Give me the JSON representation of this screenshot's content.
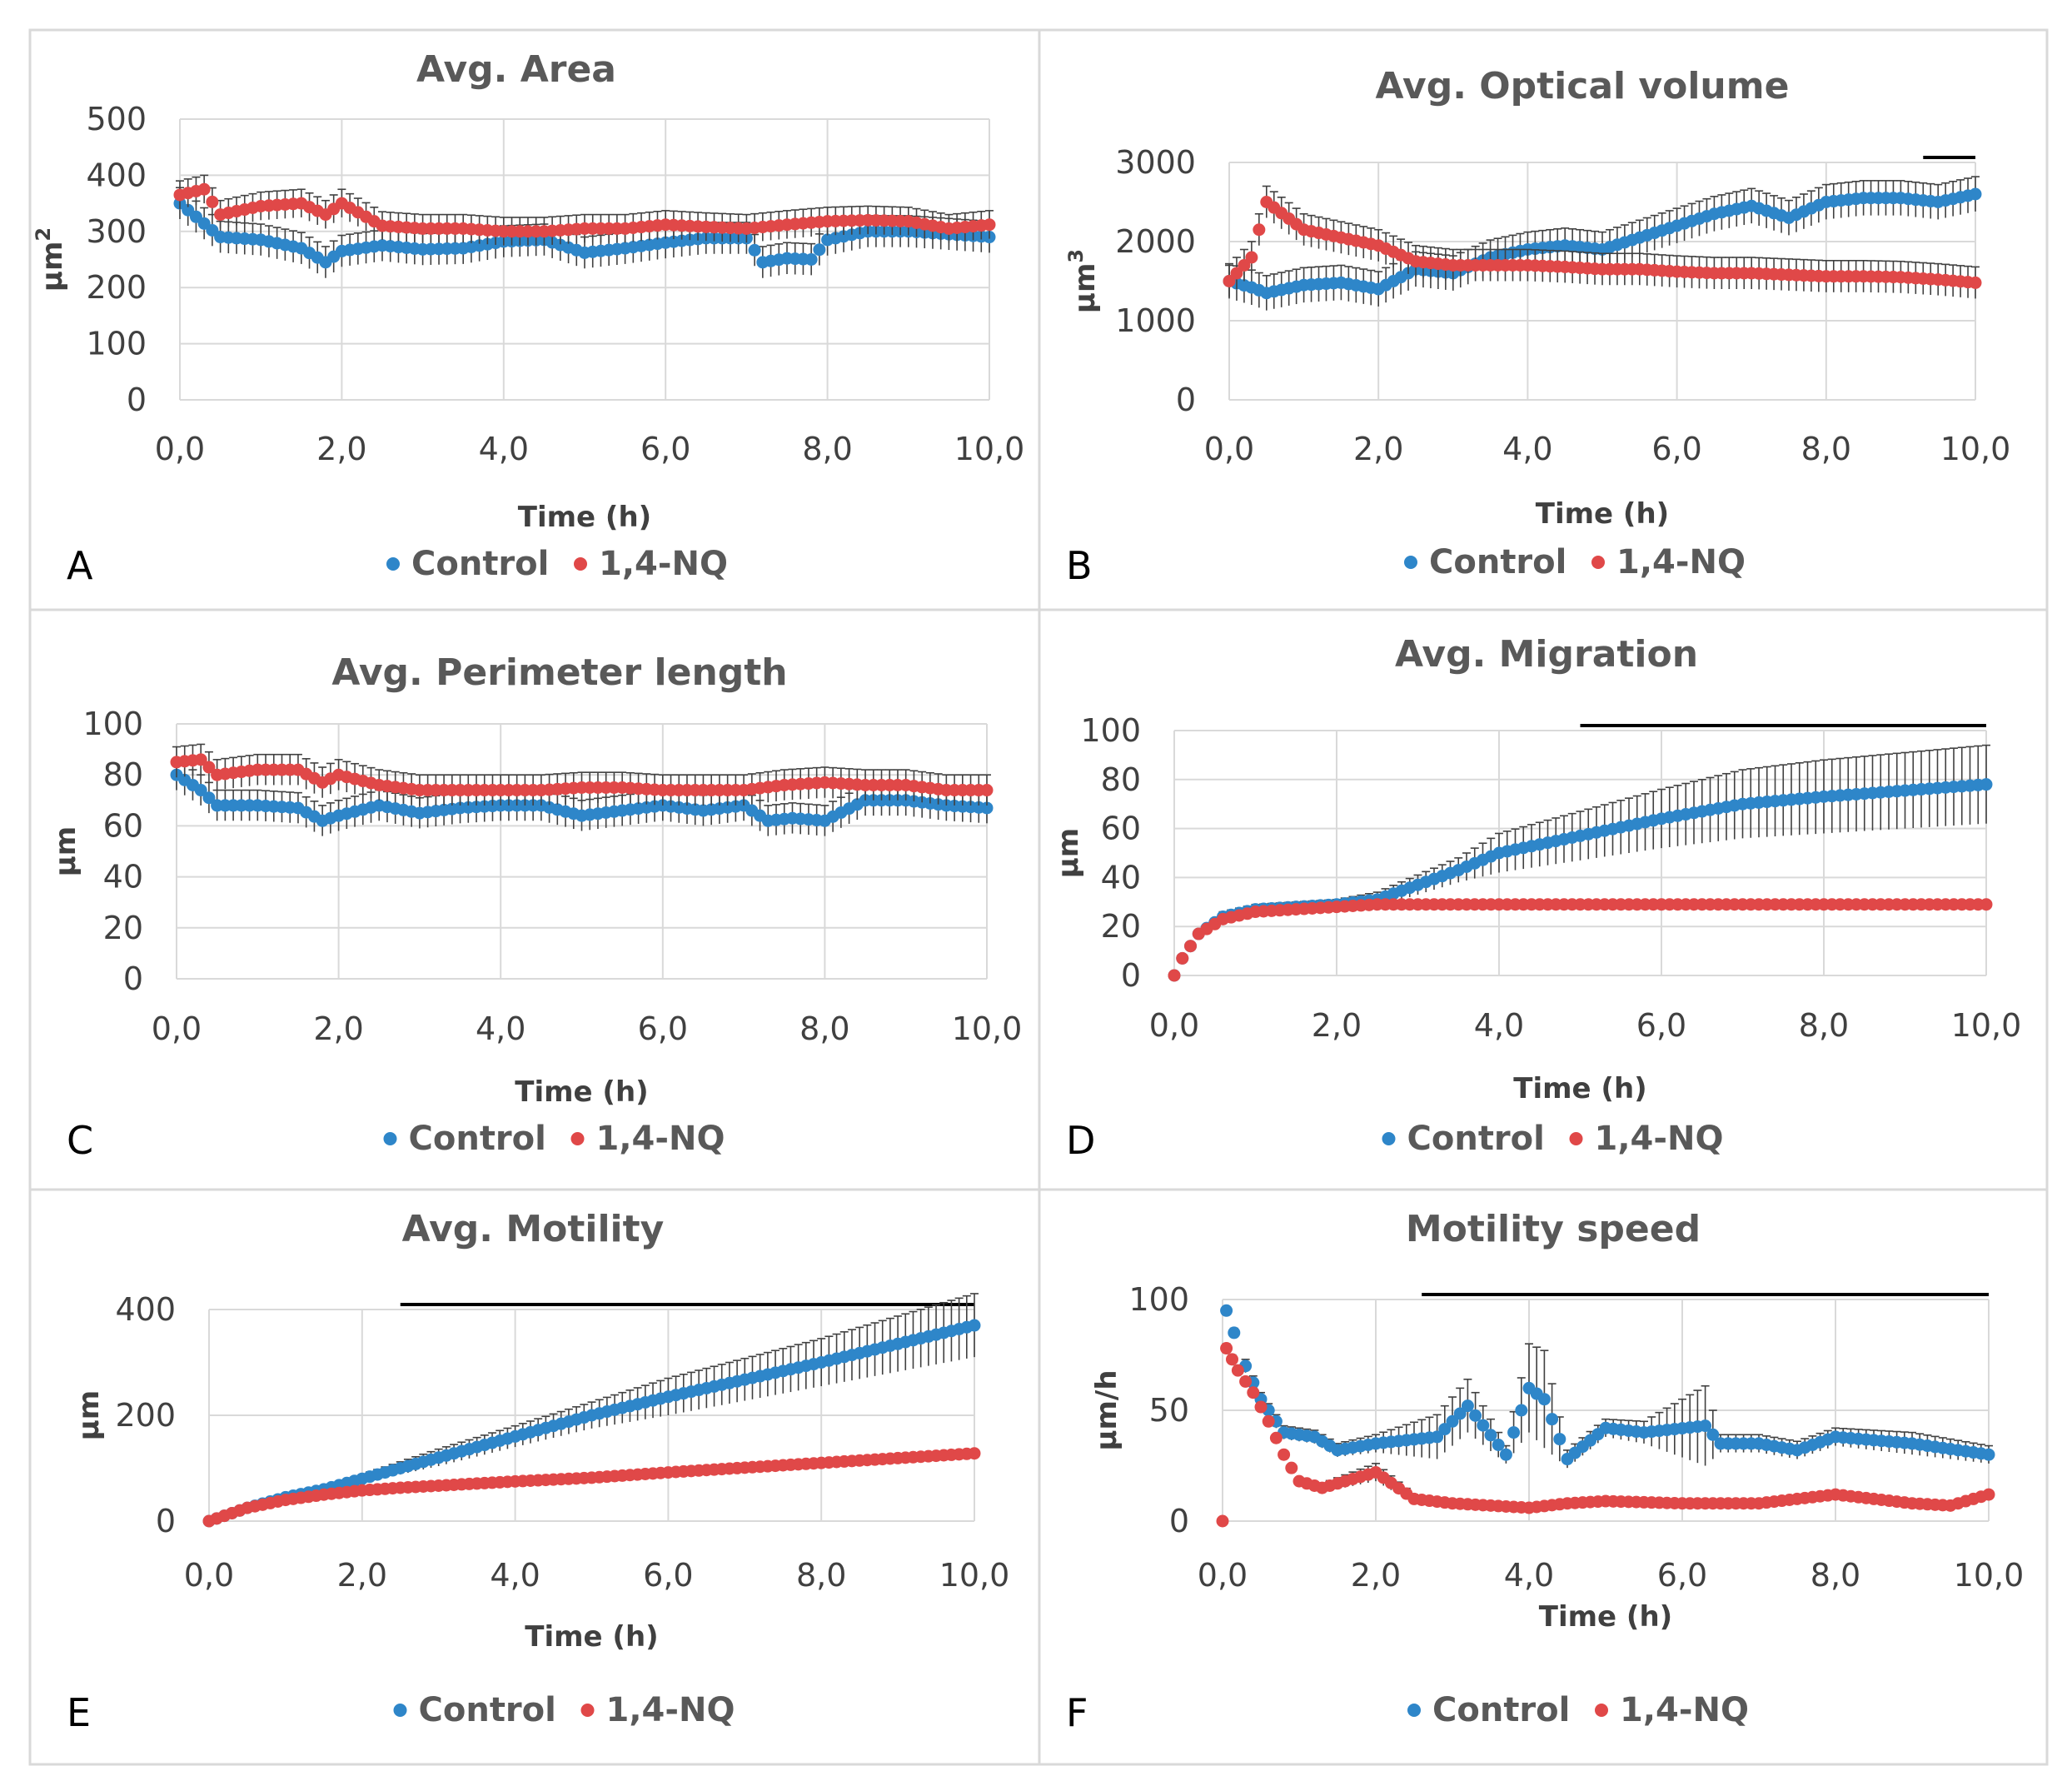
{
  "legend": {
    "control_label": "Control",
    "nq_label": "1,4-NQ"
  },
  "colors": {
    "control": "#2e86c9",
    "nq": "#e04848",
    "error_bar": "#404040",
    "sig_bar": "#000000"
  },
  "chart_data": [
    {
      "panel": "A",
      "type": "scatter",
      "title": "Avg. Area",
      "xlabel": "Time (h)",
      "ylabel": "µm",
      "ylabel_sup": "2",
      "xlim": [
        0,
        10
      ],
      "ylim": [
        0,
        500
      ],
      "xticks": [
        "0,0",
        "2,0",
        "4,0",
        "6,0",
        "8,0",
        "10,0"
      ],
      "yticks": [
        "0",
        "100",
        "200",
        "300",
        "400",
        "500"
      ],
      "significance_bar": null,
      "series": [
        {
          "name": "Control",
          "error": 28,
          "x": [
            0,
            0.5,
            1,
            1.5,
            1.8,
            2,
            2.5,
            3,
            3.5,
            4,
            4.5,
            5,
            5.5,
            6,
            6.5,
            7,
            7.2,
            7.5,
            7.8,
            8,
            8.5,
            9,
            9.5,
            10
          ],
          "y": [
            350,
            290,
            285,
            270,
            245,
            265,
            275,
            268,
            270,
            282,
            285,
            262,
            270,
            280,
            288,
            288,
            245,
            252,
            250,
            285,
            300,
            300,
            295,
            290
          ]
        },
        {
          "name": "1,4-NQ",
          "error": 25,
          "x": [
            0,
            0.3,
            0.5,
            1,
            1.5,
            1.8,
            2,
            2.5,
            3,
            3.5,
            4,
            4.5,
            5,
            5.5,
            6,
            6.5,
            7,
            7.5,
            8,
            8.5,
            9,
            9.5,
            10
          ],
          "y": [
            365,
            375,
            330,
            345,
            350,
            330,
            350,
            310,
            305,
            305,
            300,
            300,
            305,
            305,
            312,
            308,
            305,
            312,
            318,
            320,
            318,
            305,
            312
          ]
        }
      ]
    },
    {
      "panel": "B",
      "type": "scatter",
      "title": "Avg. Optical volume",
      "xlabel": "Time (h)",
      "ylabel": "µm",
      "ylabel_sup": "3",
      "xlim": [
        0,
        10
      ],
      "ylim": [
        0,
        3000
      ],
      "xticks": [
        "0,0",
        "2,0",
        "4,0",
        "6,0",
        "8,0",
        "10,0"
      ],
      "yticks": [
        "0",
        "1000",
        "2000",
        "3000"
      ],
      "significance_bar": [
        9.3,
        10
      ],
      "series": [
        {
          "name": "Control",
          "error": 220,
          "x": [
            0,
            0.3,
            0.5,
            1,
            1.5,
            2,
            2.5,
            3,
            3.5,
            4,
            4.5,
            5,
            5.5,
            6,
            6.5,
            7,
            7.5,
            8,
            8.5,
            9,
            9.5,
            10
          ],
          "y": [
            1500,
            1420,
            1350,
            1450,
            1480,
            1400,
            1650,
            1600,
            1800,
            1900,
            1950,
            1900,
            2050,
            2200,
            2350,
            2450,
            2300,
            2500,
            2550,
            2550,
            2500,
            2600
          ]
        },
        {
          "name": "1,4-NQ",
          "error": 200,
          "x": [
            0,
            0.3,
            0.5,
            1,
            1.5,
            2,
            2.5,
            3,
            3.5,
            4,
            4.5,
            5,
            5.5,
            6,
            6.5,
            7,
            7.5,
            8,
            8.5,
            9,
            9.5,
            10
          ],
          "y": [
            1500,
            1800,
            2500,
            2150,
            2050,
            1950,
            1750,
            1700,
            1700,
            1700,
            1680,
            1650,
            1650,
            1620,
            1600,
            1600,
            1580,
            1560,
            1560,
            1550,
            1520,
            1480
          ]
        }
      ]
    },
    {
      "panel": "C",
      "type": "scatter",
      "title": "Avg. Perimeter length",
      "xlabel": "Time (h)",
      "ylabel": "µm",
      "ylabel_sup": "",
      "xlim": [
        0,
        10
      ],
      "ylim": [
        0,
        100
      ],
      "xticks": [
        "0,0",
        "2,0",
        "4,0",
        "6,0",
        "8,0",
        "10,0"
      ],
      "yticks": [
        "0",
        "20",
        "40",
        "60",
        "80",
        "100"
      ],
      "significance_bar": null,
      "series": [
        {
          "name": "Control",
          "error": 6,
          "x": [
            0,
            0.3,
            0.5,
            1,
            1.5,
            1.8,
            2,
            2.5,
            3,
            3.5,
            4,
            4.5,
            5,
            5.5,
            6,
            6.5,
            7,
            7.3,
            7.6,
            8,
            8.5,
            9,
            9.5,
            10
          ],
          "y": [
            80,
            74,
            68,
            68,
            67,
            62,
            64,
            68,
            65,
            67,
            68,
            68,
            64,
            66,
            68,
            66,
            68,
            62,
            63,
            62,
            70,
            70,
            68,
            67
          ]
        },
        {
          "name": "1,4-NQ",
          "error": 6,
          "x": [
            0,
            0.3,
            0.5,
            1,
            1.5,
            1.8,
            2,
            2.5,
            3,
            3.5,
            4,
            4.5,
            5,
            5.5,
            6,
            6.5,
            7,
            7.5,
            8,
            8.5,
            9,
            9.5,
            10
          ],
          "y": [
            85,
            86,
            80,
            82,
            82,
            77,
            80,
            76,
            74,
            74,
            74,
            74,
            75,
            75,
            74,
            74,
            74,
            76,
            77,
            76,
            76,
            74,
            74
          ]
        }
      ]
    },
    {
      "panel": "D",
      "type": "scatter",
      "title": "Avg. Migration",
      "xlabel": "Time (h)",
      "ylabel": "µm",
      "ylabel_sup": "",
      "xlim": [
        0,
        10
      ],
      "ylim": [
        0,
        100
      ],
      "xticks": [
        "0,0",
        "2,0",
        "4,0",
        "6,0",
        "8,0",
        "10,0"
      ],
      "yticks": [
        "0",
        "20",
        "40",
        "60",
        "80",
        "100"
      ],
      "significance_bar": [
        5,
        10
      ],
      "series": [
        {
          "name": "Control",
          "error": [
            0,
            1,
            1,
            2,
            2,
            2,
            2,
            3,
            4,
            5,
            8,
            10,
            12,
            14,
            15,
            16
          ],
          "x": [
            0,
            0.1,
            0.3,
            0.6,
            1,
            1.5,
            2,
            2.5,
            3,
            3.5,
            4,
            5,
            6,
            7,
            8,
            10
          ],
          "y": [
            0,
            7,
            17,
            24,
            27,
            28,
            29,
            31,
            37,
            43,
            50,
            57,
            64,
            70,
            73,
            78
          ]
        },
        {
          "name": "1,4-NQ",
          "error": [
            0,
            1,
            1,
            1,
            1,
            1,
            1,
            1,
            1,
            1,
            1,
            1,
            1,
            1,
            1,
            1
          ],
          "x": [
            0,
            0.1,
            0.3,
            0.6,
            1,
            1.5,
            2,
            2.5,
            3,
            3.5,
            4,
            5,
            6,
            7,
            8,
            10
          ],
          "y": [
            0,
            7,
            17,
            23,
            26,
            27,
            28,
            29,
            29,
            29,
            29,
            29,
            29,
            29,
            29,
            29
          ]
        }
      ]
    },
    {
      "panel": "E",
      "type": "scatter",
      "title": "Avg. Motility",
      "xlabel": "Time (h)",
      "ylabel": "µm",
      "ylabel_sup": "",
      "xlim": [
        0,
        10
      ],
      "ylim": [
        0,
        400
      ],
      "xticks": [
        "0,0",
        "2,0",
        "4,0",
        "6,0",
        "8,0",
        "10,0"
      ],
      "yticks": [
        "0",
        "200",
        "400"
      ],
      "significance_bar": [
        2.5,
        10
      ],
      "series": [
        {
          "name": "Control",
          "error": [
            0,
            2,
            4,
            6,
            8,
            12,
            16,
            20,
            25,
            35,
            45,
            60
          ],
          "x": [
            0,
            0.5,
            1,
            1.5,
            2,
            2.5,
            3,
            4,
            5,
            6,
            8,
            10
          ],
          "y": [
            0,
            25,
            45,
            60,
            80,
            100,
            120,
            160,
            200,
            235,
            300,
            370
          ]
        },
        {
          "name": "1,4-NQ",
          "error": [
            0,
            2,
            2,
            3,
            3,
            3,
            3,
            3,
            3,
            4,
            4,
            5
          ],
          "x": [
            0,
            0.5,
            1,
            1.5,
            2,
            2.5,
            3,
            4,
            5,
            6,
            8,
            10
          ],
          "y": [
            0,
            25,
            40,
            50,
            58,
            63,
            67,
            75,
            82,
            92,
            110,
            128
          ]
        }
      ]
    },
    {
      "panel": "F",
      "type": "scatter",
      "title": "Motility speed",
      "xlabel": "Time (h)",
      "ylabel": "µm/h",
      "ylabel_sup": "",
      "xlim": [
        0,
        10
      ],
      "ylim": [
        0,
        100
      ],
      "xticks": [
        "0,0",
        "2,0",
        "4,0",
        "6,0",
        "8,0",
        "10,0"
      ],
      "yticks": [
        "0",
        "50",
        "100"
      ],
      "significance_bar": [
        2.6,
        10
      ],
      "series": [
        {
          "name": "Control",
          "error": [
            0,
            2,
            3,
            3,
            3,
            3,
            3,
            4,
            10,
            12,
            4,
            20,
            22,
            4,
            4,
            5,
            18,
            4,
            4,
            4,
            4,
            5,
            4
          ],
          "x": [
            0.05,
            0.15,
            0.3,
            0.5,
            0.8,
            1.2,
            1.5,
            2,
            2.8,
            3.2,
            3.7,
            4,
            4.2,
            4.5,
            5,
            5.5,
            6.3,
            6.5,
            7,
            7.5,
            8,
            9,
            10
          ],
          "y": [
            95,
            85,
            70,
            55,
            40,
            38,
            32,
            35,
            38,
            52,
            30,
            60,
            55,
            28,
            42,
            40,
            43,
            35,
            35,
            32,
            38,
            35,
            30
          ]
        },
        {
          "name": "1,4-NQ",
          "error": [
            0,
            2,
            2,
            2,
            2,
            1,
            1,
            2,
            4,
            2,
            1,
            1,
            1,
            1,
            1,
            1,
            1,
            2,
            1,
            1
          ],
          "x": [
            0,
            0.05,
            0.2,
            0.4,
            0.6,
            0.8,
            1,
            1.3,
            2,
            2.5,
            3,
            4,
            4.5,
            5,
            6,
            7,
            8,
            9,
            9.5,
            10
          ],
          "y": [
            0,
            78,
            68,
            58,
            45,
            30,
            18,
            15,
            22,
            10,
            8,
            6,
            8,
            9,
            8,
            8,
            12,
            8,
            7,
            12
          ]
        }
      ]
    }
  ]
}
